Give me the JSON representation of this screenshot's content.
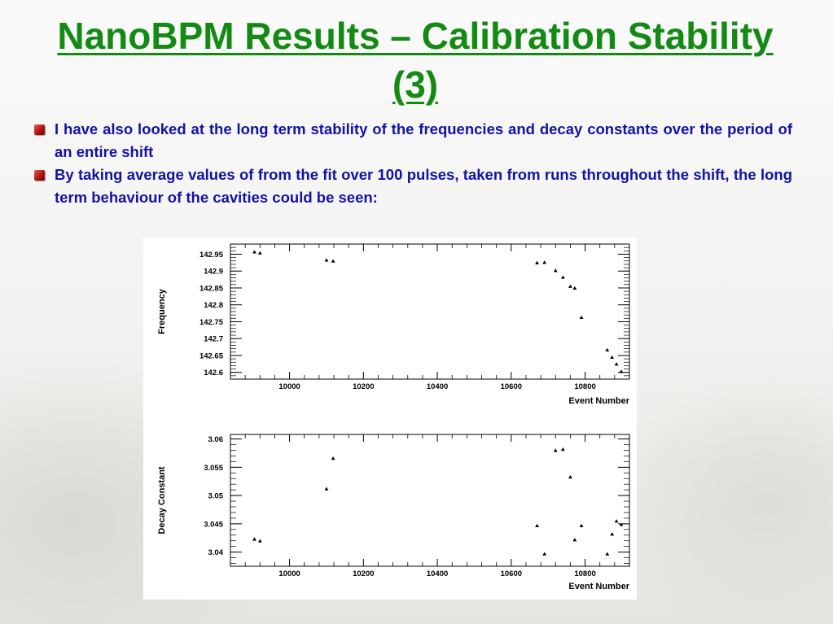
{
  "slide": {
    "title": "NanoBPM Results – Calibration Stability (3)",
    "bullets": [
      "I have also looked at the long term stability of the frequencies and decay constants over the period of an entire shift",
      "By taking average values of from the fit over 100 pulses, taken from runs throughout the shift, the long term behaviour of the cavities could be seen:"
    ]
  },
  "colors": {
    "title": "#138a13",
    "bullet_text": "#1212a8",
    "bullet_marker": "#b01414"
  },
  "chart_data": [
    {
      "type": "scatter",
      "title": "",
      "xlabel": "Event Number",
      "ylabel": "Frequency",
      "xlim": [
        9840,
        10920
      ],
      "ylim": [
        142.58,
        142.98
      ],
      "x_ticks": [
        10000,
        10200,
        10400,
        10600,
        10800
      ],
      "y_ticks": [
        142.6,
        142.65,
        142.7,
        142.75,
        142.8,
        142.85,
        142.9,
        142.95
      ],
      "x_tick_labels": [
        "10000",
        "10200",
        "10400",
        "10600",
        "10800"
      ],
      "y_tick_labels": [
        "142.6",
        "142.65",
        "142.7",
        "142.75",
        "142.8",
        "142.85",
        "142.9",
        "142.95"
      ],
      "grid": false,
      "points": [
        {
          "x": 9905,
          "y": 142.957
        },
        {
          "x": 9920,
          "y": 142.954
        },
        {
          "x": 10100,
          "y": 142.933
        },
        {
          "x": 10118,
          "y": 142.93
        },
        {
          "x": 10670,
          "y": 142.925
        },
        {
          "x": 10690,
          "y": 142.926
        },
        {
          "x": 10720,
          "y": 142.902
        },
        {
          "x": 10740,
          "y": 142.882
        },
        {
          "x": 10760,
          "y": 142.855
        },
        {
          "x": 10772,
          "y": 142.85
        },
        {
          "x": 10790,
          "y": 142.763
        },
        {
          "x": 10860,
          "y": 142.667
        },
        {
          "x": 10873,
          "y": 142.645
        },
        {
          "x": 10885,
          "y": 142.625
        },
        {
          "x": 10898,
          "y": 142.603
        }
      ]
    },
    {
      "type": "scatter",
      "title": "",
      "xlabel": "Event Number",
      "ylabel": "Decay Constant",
      "xlim": [
        9840,
        10920
      ],
      "ylim": [
        3.0375,
        3.0608
      ],
      "x_ticks": [
        10000,
        10200,
        10400,
        10600,
        10800
      ],
      "y_ticks": [
        3.04,
        3.045,
        3.05,
        3.055,
        3.06
      ],
      "x_tick_labels": [
        "10000",
        "10200",
        "10400",
        "10600",
        "10800"
      ],
      "y_tick_labels": [
        "3.04",
        "3.045",
        "3.05",
        "3.055",
        "3.06"
      ],
      "grid": false,
      "points": [
        {
          "x": 9905,
          "y": 3.0423
        },
        {
          "x": 9920,
          "y": 3.042
        },
        {
          "x": 10100,
          "y": 3.0512
        },
        {
          "x": 10118,
          "y": 3.0566
        },
        {
          "x": 10670,
          "y": 3.0447
        },
        {
          "x": 10690,
          "y": 3.0397
        },
        {
          "x": 10720,
          "y": 3.058
        },
        {
          "x": 10740,
          "y": 3.0582
        },
        {
          "x": 10760,
          "y": 3.0533
        },
        {
          "x": 10772,
          "y": 3.0422
        },
        {
          "x": 10790,
          "y": 3.0447
        },
        {
          "x": 10860,
          "y": 3.0397
        },
        {
          "x": 10873,
          "y": 3.0432
        },
        {
          "x": 10885,
          "y": 3.0455
        },
        {
          "x": 10898,
          "y": 3.0449
        }
      ]
    }
  ]
}
